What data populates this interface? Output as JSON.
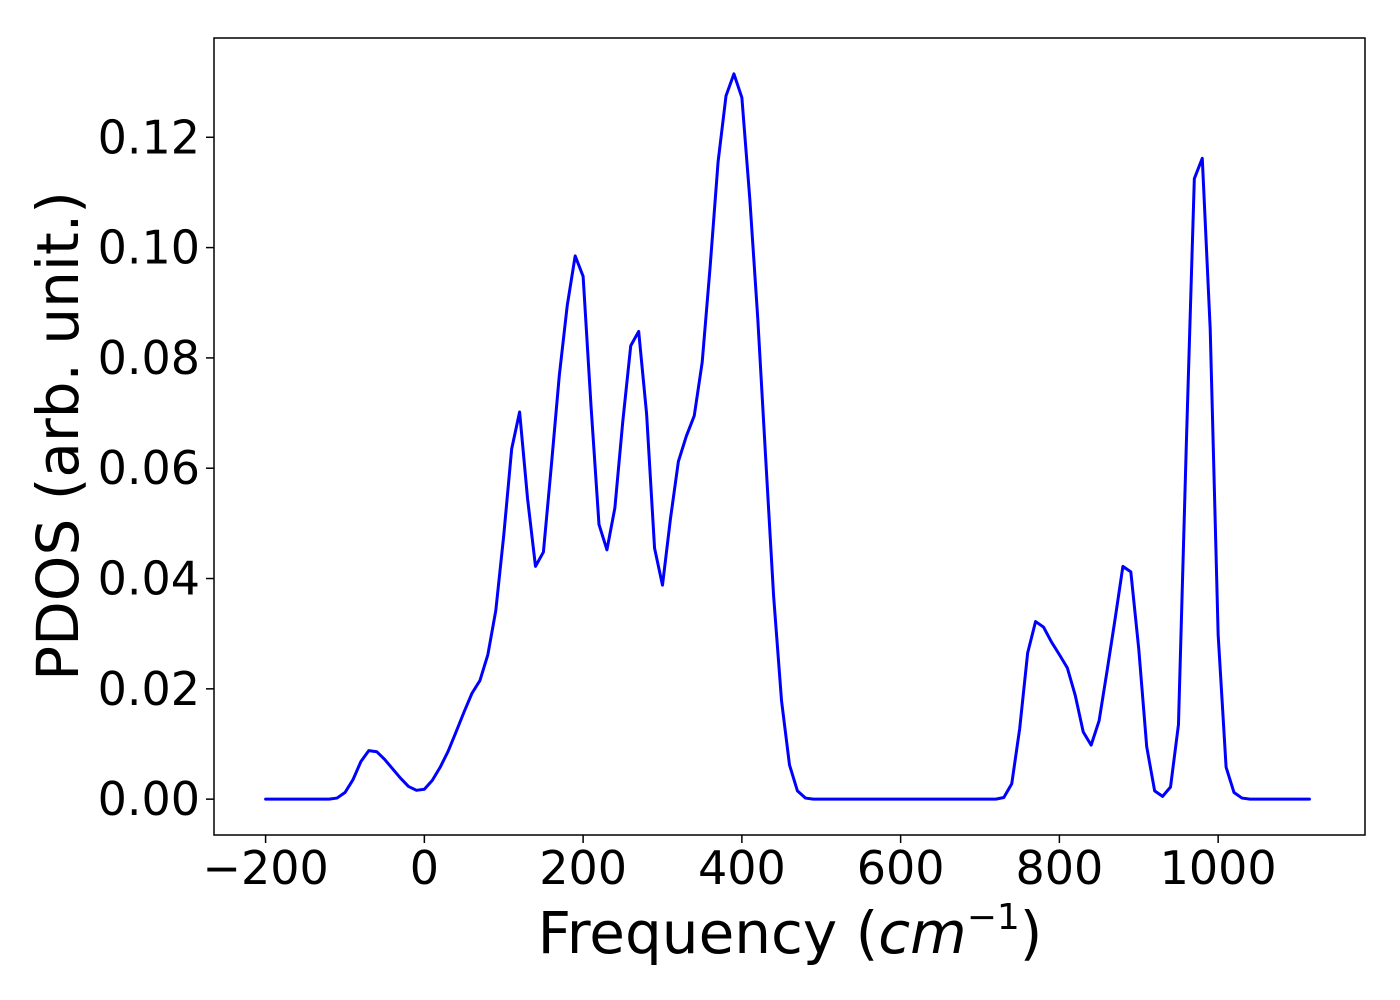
{
  "chart_data": {
    "type": "line",
    "title": "",
    "xlabel": {
      "prefix": "Frequency (",
      "italic_unit": "cm",
      "exponent": "−1",
      "suffix": ")"
    },
    "ylabel": "PDOS (arb. unit.)",
    "xlim": [
      -265,
      1185
    ],
    "ylim": [
      -0.0065,
      0.138
    ],
    "xticks": [
      -200,
      0,
      200,
      400,
      600,
      800,
      1000
    ],
    "xtick_labels": [
      "−200",
      "0",
      "200",
      "400",
      "600",
      "800",
      "1000"
    ],
    "yticks": [
      0.0,
      0.02,
      0.04,
      0.06,
      0.08,
      0.1,
      0.12
    ],
    "ytick_labels": [
      "0.00",
      "0.02",
      "0.04",
      "0.06",
      "0.08",
      "0.10",
      "0.12"
    ],
    "grid": false,
    "series": [
      {
        "color": "#0000ff",
        "x": [
          -200,
          -190,
          -180,
          -170,
          -160,
          -150,
          -140,
          -130,
          -120,
          -110,
          -100,
          -90,
          -80,
          -70,
          -60,
          -50,
          -40,
          -30,
          -20,
          -10,
          0,
          10,
          20,
          30,
          40,
          50,
          60,
          70,
          80,
          90,
          100,
          110,
          120,
          130,
          140,
          150,
          160,
          170,
          180,
          190,
          200,
          210,
          220,
          230,
          240,
          250,
          260,
          270,
          280,
          290,
          300,
          310,
          320,
          330,
          340,
          350,
          360,
          370,
          380,
          390,
          400,
          410,
          420,
          430,
          440,
          450,
          460,
          470,
          480,
          490,
          500,
          510,
          520,
          540,
          560,
          580,
          600,
          620,
          640,
          660,
          680,
          700,
          720,
          730,
          740,
          750,
          760,
          770,
          780,
          790,
          800,
          810,
          820,
          830,
          840,
          850,
          860,
          870,
          880,
          890,
          900,
          910,
          920,
          930,
          940,
          950,
          960,
          970,
          980,
          990,
          1000,
          1010,
          1020,
          1030,
          1040,
          1050,
          1060,
          1080,
          1100,
          1115
        ],
        "y": [
          0.0,
          0.0,
          0.0,
          0.0,
          0.0,
          0.0,
          0.0,
          0.0,
          0.0,
          0.0002,
          0.0012,
          0.0035,
          0.0068,
          0.0088,
          0.0086,
          0.0072,
          0.0055,
          0.0038,
          0.0023,
          0.0016,
          0.0018,
          0.0034,
          0.0058,
          0.0087,
          0.0122,
          0.0158,
          0.0192,
          0.0215,
          0.0262,
          0.0342,
          0.0478,
          0.0635,
          0.0702,
          0.0545,
          0.0422,
          0.0448,
          0.0605,
          0.0768,
          0.0895,
          0.0985,
          0.0948,
          0.0712,
          0.0498,
          0.0452,
          0.0528,
          0.0685,
          0.0822,
          0.0848,
          0.0698,
          0.0455,
          0.0388,
          0.0508,
          0.0612,
          0.0658,
          0.0695,
          0.0792,
          0.0965,
          0.1155,
          0.1275,
          0.1315,
          0.1272,
          0.1088,
          0.0872,
          0.0618,
          0.0368,
          0.0178,
          0.0062,
          0.0015,
          0.0002,
          0.0,
          0.0,
          0.0,
          0.0,
          0.0,
          0.0,
          0.0,
          0.0,
          0.0,
          0.0,
          0.0,
          0.0,
          0.0,
          0.0,
          0.0003,
          0.0028,
          0.0128,
          0.0265,
          0.0322,
          0.0312,
          0.0285,
          0.0262,
          0.0238,
          0.0188,
          0.0122,
          0.0098,
          0.0142,
          0.0232,
          0.0325,
          0.0422,
          0.0412,
          0.0272,
          0.0095,
          0.0015,
          0.0005,
          0.0022,
          0.0135,
          0.0648,
          0.1125,
          0.1162,
          0.0852,
          0.0298,
          0.0058,
          0.0012,
          0.0002,
          0.0,
          0.0,
          0.0,
          0.0,
          0.0,
          0.0
        ]
      }
    ]
  }
}
